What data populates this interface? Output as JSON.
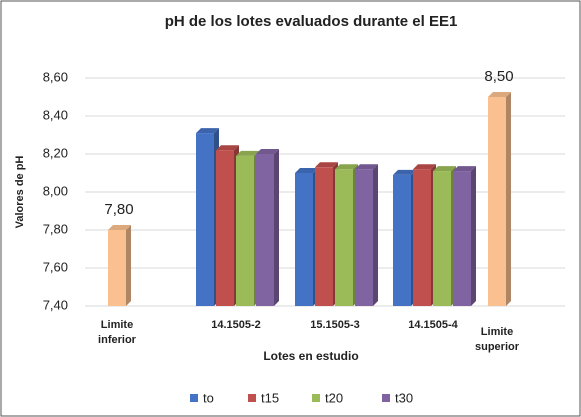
{
  "chart_data": {
    "type": "bar3d",
    "title": "pH de los lotes evaluados durante el EE1",
    "ylabel": "Valores de pH",
    "xlabel": "Lotes en estudio",
    "categories": [
      "Limite inferior",
      "14.1505-2",
      "15.1505-3",
      "14.1505-4",
      "Limite superior"
    ],
    "series": [
      {
        "name": "to",
        "color": "#4472c4",
        "values": [
          null,
          8.31,
          8.1,
          8.09,
          null
        ]
      },
      {
        "name": "t15",
        "color": "#c0504d",
        "values": [
          null,
          8.22,
          8.13,
          8.12,
          null
        ]
      },
      {
        "name": "t20",
        "color": "#9bbb59",
        "values": [
          null,
          8.19,
          8.12,
          8.11,
          null
        ]
      },
      {
        "name": "t30",
        "color": "#8064a2",
        "values": [
          null,
          8.2,
          8.12,
          8.11,
          null
        ]
      }
    ],
    "limit_bars": {
      "color": "#fac090",
      "values": [
        7.8,
        null,
        null,
        null,
        8.5
      ],
      "value_labels": [
        "7,80",
        null,
        null,
        null,
        "8,50"
      ]
    },
    "ylim": [
      7.4,
      8.6
    ],
    "yticks": [
      {
        "value": 7.4,
        "label": "7,40"
      },
      {
        "value": 7.6,
        "label": "7,60"
      },
      {
        "value": 7.8,
        "label": "7,80"
      },
      {
        "value": 8.0,
        "label": "8,00"
      },
      {
        "value": 8.2,
        "label": "8,20"
      },
      {
        "value": 8.4,
        "label": "8,40"
      },
      {
        "value": 8.6,
        "label": "8,60"
      }
    ],
    "grid": true,
    "legend": "bottom"
  }
}
